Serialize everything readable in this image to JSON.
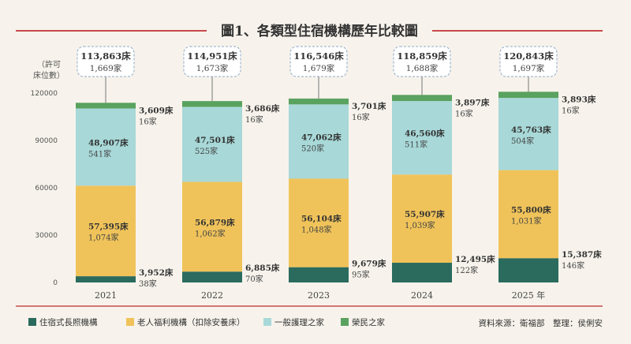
{
  "chart_data": {
    "type": "bar",
    "stacked": true,
    "title": "圖1、各類型住宿機構歷年比較圖",
    "ylabel": [
      "（許可",
      "床位數）"
    ],
    "ylim": [
      0,
      120000
    ],
    "yticks": [
      "0",
      "30000",
      "60000",
      "90000",
      "120000"
    ],
    "categories": [
      "2021",
      "2022",
      "2023",
      "2024",
      "2025 年"
    ],
    "series": [
      {
        "name": "住宿式長照機構",
        "color": "#2b6b5e",
        "values": [
          3952,
          6885,
          9679,
          12495,
          15387
        ],
        "bed_labels": [
          "3,952床",
          "6,885床",
          "9,679床",
          "12,495床",
          "15,387床"
        ],
        "inst_labels": [
          "38家",
          "70家",
          "95家",
          "122家",
          "146家"
        ]
      },
      {
        "name": "老人福利機構（扣除安養床）",
        "color": "#f0c35a",
        "values": [
          57395,
          56879,
          56104,
          55907,
          55800
        ],
        "bed_labels": [
          "57,395床",
          "56,879床",
          "56,104床",
          "55,907床",
          "55,800床"
        ],
        "inst_labels": [
          "1,074家",
          "1,062家",
          "1,048家",
          "1,039家",
          "1,031家"
        ]
      },
      {
        "name": "一般護理之家",
        "color": "#a8d8d8",
        "values": [
          48907,
          47501,
          47062,
          46560,
          45763
        ],
        "bed_labels": [
          "48,907床",
          "47,501床",
          "47,062床",
          "46,560床",
          "45,763床"
        ],
        "inst_labels": [
          "541家",
          "525家",
          "520家",
          "511家",
          "504家"
        ]
      },
      {
        "name": "榮民之家",
        "color": "#5aa25f",
        "values": [
          3609,
          3686,
          3701,
          3897,
          3893
        ],
        "bed_labels": [
          "3,609床",
          "3,686床",
          "3,701床",
          "3,897床",
          "3,893床"
        ],
        "inst_labels": [
          "16家",
          "16家",
          "16家",
          "16家",
          "16家"
        ]
      }
    ],
    "totals": [
      {
        "beds": "113,863床",
        "inst": "1,669家"
      },
      {
        "beds": "114,951床",
        "inst": "1,673家"
      },
      {
        "beds": "116,546床",
        "inst": "1,679家"
      },
      {
        "beds": "118,859床",
        "inst": "1,688家"
      },
      {
        "beds": "120,843床",
        "inst": "1,697家"
      }
    ],
    "legend_position": "bottom-left"
  },
  "source": "資料來源：衛福部　整理：侯俐安",
  "colors": {
    "background": "#f7f3ec",
    "rule": "#c94a4a",
    "box_border": "#8fa9c8"
  }
}
